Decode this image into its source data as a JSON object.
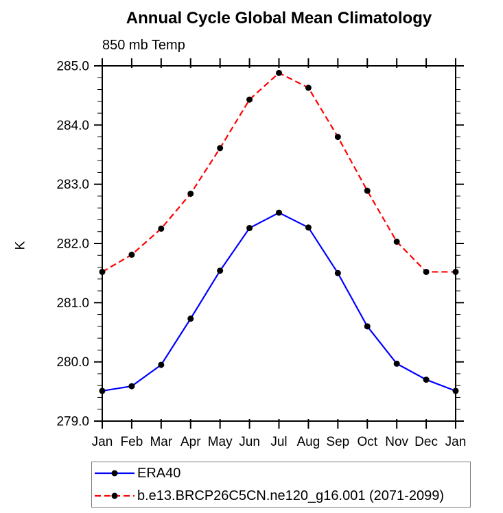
{
  "chart_data": {
    "type": "line",
    "title": "Annual Cycle Global Mean Climatology",
    "subtitle": "850 mb Temp",
    "xlabel": "",
    "ylabel": "K",
    "categories": [
      "Jan",
      "Feb",
      "Mar",
      "Apr",
      "May",
      "Jun",
      "Jul",
      "Aug",
      "Sep",
      "Oct",
      "Nov",
      "Dec",
      "Jan"
    ],
    "ylim": [
      279.0,
      285.0
    ],
    "ytick_major_step": 1.0,
    "ytick_minor_step": 0.2,
    "ytick_labels": [
      "279.0",
      "280.0",
      "281.0",
      "282.0",
      "283.0",
      "284.0",
      "285.0"
    ],
    "grid": false,
    "legend_position": "bottom-left-box",
    "axis_color": "#000000",
    "marker": "filled-circle",
    "marker_color": "#000000",
    "series": [
      {
        "name": "ERA40",
        "color": "#0000ff",
        "line_style": "solid",
        "values": [
          279.51,
          279.59,
          279.95,
          280.73,
          281.54,
          282.26,
          282.52,
          282.27,
          281.5,
          280.6,
          279.97,
          279.7,
          279.51
        ]
      },
      {
        "name": "b.e13.BRCP26C5CN.ne120_g16.001 (2071-2099)",
        "color": "#ff0000",
        "line_style": "dashed",
        "values": [
          281.52,
          281.81,
          282.25,
          282.84,
          283.61,
          284.43,
          284.88,
          284.63,
          283.8,
          282.89,
          282.03,
          281.52,
          281.52
        ]
      }
    ]
  }
}
